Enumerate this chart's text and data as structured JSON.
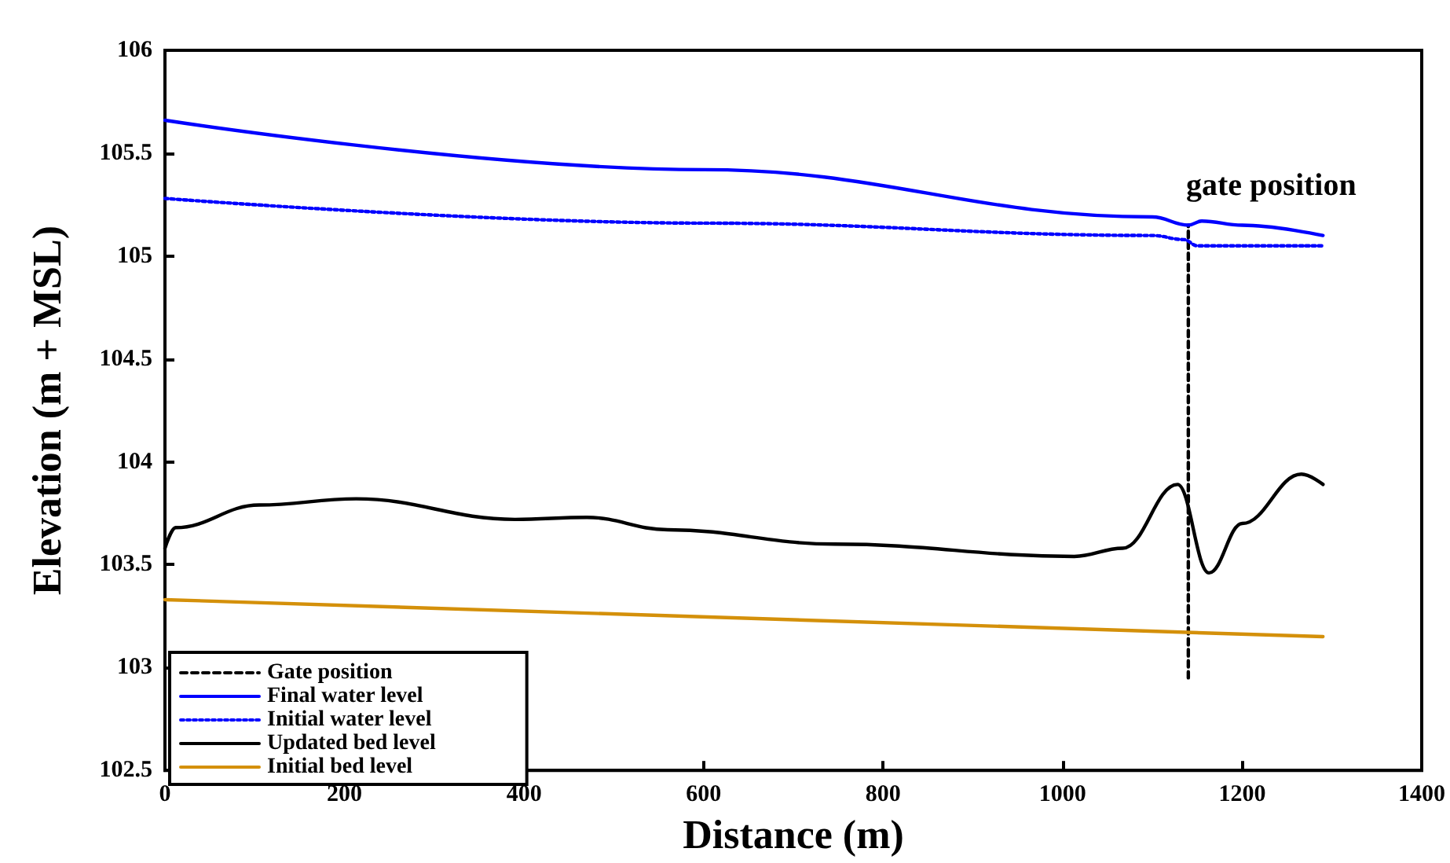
{
  "chart_data": {
    "type": "line",
    "xlabel": "Distance (m)",
    "ylabel": "Elevation (m + MSL)",
    "xlim": [
      0,
      1400
    ],
    "xticks": [
      0,
      200,
      400,
      600,
      800,
      1000,
      1200,
      1400
    ],
    "ylim": [
      102.5,
      106
    ],
    "yticks": [
      102.5,
      103,
      103.5,
      104,
      104.5,
      105,
      105.5,
      106
    ],
    "grid": false,
    "legend": "bottom left",
    "marker": "none",
    "annotations": [
      "gate position"
    ],
    "series": [
      {
        "name": "Gate position",
        "color": "#000000",
        "line_style": "dashed",
        "x": [
          1140,
          1140
        ],
        "values": [
          102.95,
          105.15
        ]
      },
      {
        "name": "Final water level",
        "color": "#0000ff",
        "line_style": "solid",
        "x": [
          0,
          600,
          1100,
          1140,
          1155,
          1200,
          1290
        ],
        "values": [
          105.66,
          105.42,
          105.19,
          105.15,
          105.17,
          105.15,
          105.1
        ]
      },
      {
        "name": "Initial water level",
        "color": "#0000ff",
        "line_style": "dotted",
        "x": [
          0,
          600,
          1100,
          1135,
          1150,
          1200,
          1290
        ],
        "values": [
          105.28,
          105.16,
          105.1,
          105.08,
          105.05,
          105.05,
          105.05
        ]
      },
      {
        "name": "Updated bed level",
        "color": "#000000",
        "line_style": "solid",
        "x": [
          0,
          12,
          105,
          213,
          390,
          470,
          560,
          746,
          1013,
          1067,
          1128,
          1163,
          1200,
          1266,
          1290
        ],
        "values": [
          103.58,
          103.68,
          103.79,
          103.82,
          103.72,
          103.73,
          103.67,
          103.6,
          103.54,
          103.58,
          103.89,
          103.46,
          103.7,
          103.94,
          103.89
        ]
      },
      {
        "name": "Initial bed level",
        "color": "#d4900a",
        "line_style": "solid",
        "x": [
          0,
          1290
        ],
        "values": [
          103.33,
          103.15
        ]
      }
    ]
  }
}
